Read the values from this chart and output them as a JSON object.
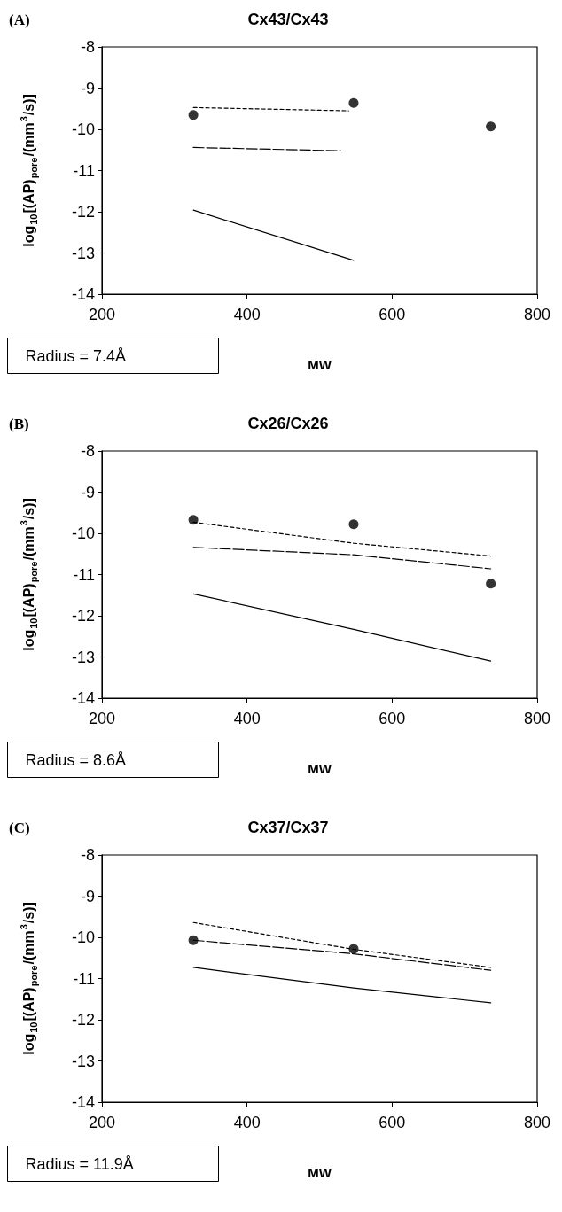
{
  "chart_data": [
    {
      "type": "scatter",
      "title": "Cx43/Cx43",
      "xlabel": "MW",
      "ylabel": "log$_{10}$[(AP)$_{pore}$/(mm$^{3}$/s)]",
      "annotations": [
        "(A)",
        "Radius = 7.4Å"
      ],
      "xlim": [
        200,
        800
      ],
      "xticks": [
        200,
        400,
        600,
        800
      ],
      "ylim": [
        -14,
        -8
      ],
      "yticks": [
        -14,
        -13,
        -12,
        -11,
        -10,
        -9,
        -8
      ],
      "grid": false,
      "series": [
        {
          "marker": "circle",
          "color": "#000000",
          "x": [
            326,
            547,
            736
          ],
          "values": [
            -9.65,
            -9.36,
            -9.93
          ]
        },
        {
          "type": "line",
          "line_style": "dotted",
          "marker": "none",
          "color": "#000000",
          "x": [
            326,
            540
          ],
          "values": [
            -9.47,
            -9.55
          ]
        },
        {
          "type": "line",
          "line_style": "dashed",
          "marker": "none",
          "color": "#000000",
          "x": [
            326,
            529
          ],
          "values": [
            -10.44,
            -10.52
          ]
        },
        {
          "type": "line",
          "line_style": "solid",
          "marker": "none",
          "color": "#000000",
          "x": [
            326,
            547
          ],
          "values": [
            -11.96,
            -13.18
          ]
        }
      ]
    },
    {
      "type": "scatter",
      "title": "Cx26/Cx26",
      "xlabel": "MW",
      "ylabel": "log$_{10}$[(AP)$_{pore}$/(mm$^{3}$/s)]",
      "annotations": [
        "(B)",
        "Radius = 8.6Å"
      ],
      "xlim": [
        200,
        800
      ],
      "xticks": [
        200,
        400,
        600,
        800
      ],
      "ylim": [
        -14,
        -8
      ],
      "yticks": [
        -14,
        -13,
        -12,
        -11,
        -10,
        -9,
        -8
      ],
      "grid": false,
      "series": [
        {
          "marker": "circle",
          "color": "#000000",
          "x": [
            326,
            547,
            736
          ],
          "values": [
            -9.67,
            -9.78,
            -11.22
          ]
        },
        {
          "type": "line",
          "line_style": "dotted",
          "marker": "none",
          "color": "#000000",
          "x": [
            326,
            547,
            736
          ],
          "values": [
            -9.73,
            -10.24,
            -10.55
          ]
        },
        {
          "type": "line",
          "line_style": "dashed",
          "marker": "none",
          "color": "#000000",
          "x": [
            326,
            547,
            736
          ],
          "values": [
            -10.34,
            -10.52,
            -10.86
          ]
        },
        {
          "type": "line",
          "line_style": "solid",
          "marker": "none",
          "color": "#000000",
          "x": [
            326,
            547,
            736
          ],
          "values": [
            -11.47,
            -12.33,
            -13.1
          ]
        }
      ]
    },
    {
      "type": "scatter",
      "title": "Cx37/Cx37",
      "xlabel": "MW",
      "ylabel": "log$_{10}$[(AP)$_{pore}$/(mm$^{3}$/s)]",
      "annotations": [
        "(C)",
        "Radius = 11.9Å"
      ],
      "xlim": [
        200,
        800
      ],
      "xticks": [
        200,
        400,
        600,
        800
      ],
      "ylim": [
        -14,
        -8
      ],
      "yticks": [
        -14,
        -13,
        -12,
        -11,
        -10,
        -9,
        -8
      ],
      "grid": false,
      "series": [
        {
          "marker": "circle",
          "color": "#000000",
          "x": [
            326,
            547
          ],
          "values": [
            -10.07,
            -10.28
          ]
        },
        {
          "type": "line",
          "line_style": "dotted",
          "marker": "none",
          "color": "#000000",
          "x": [
            326,
            547,
            736
          ],
          "values": [
            -9.64,
            -10.29,
            -10.73
          ]
        },
        {
          "type": "line",
          "line_style": "dashed",
          "marker": "none",
          "color": "#000000",
          "x": [
            326,
            547,
            736
          ],
          "values": [
            -10.07,
            -10.4,
            -10.8
          ]
        },
        {
          "type": "line",
          "line_style": "solid",
          "marker": "none",
          "color": "#000000",
          "x": [
            326,
            547,
            736
          ],
          "values": [
            -10.73,
            -11.23,
            -11.59
          ]
        }
      ]
    }
  ]
}
